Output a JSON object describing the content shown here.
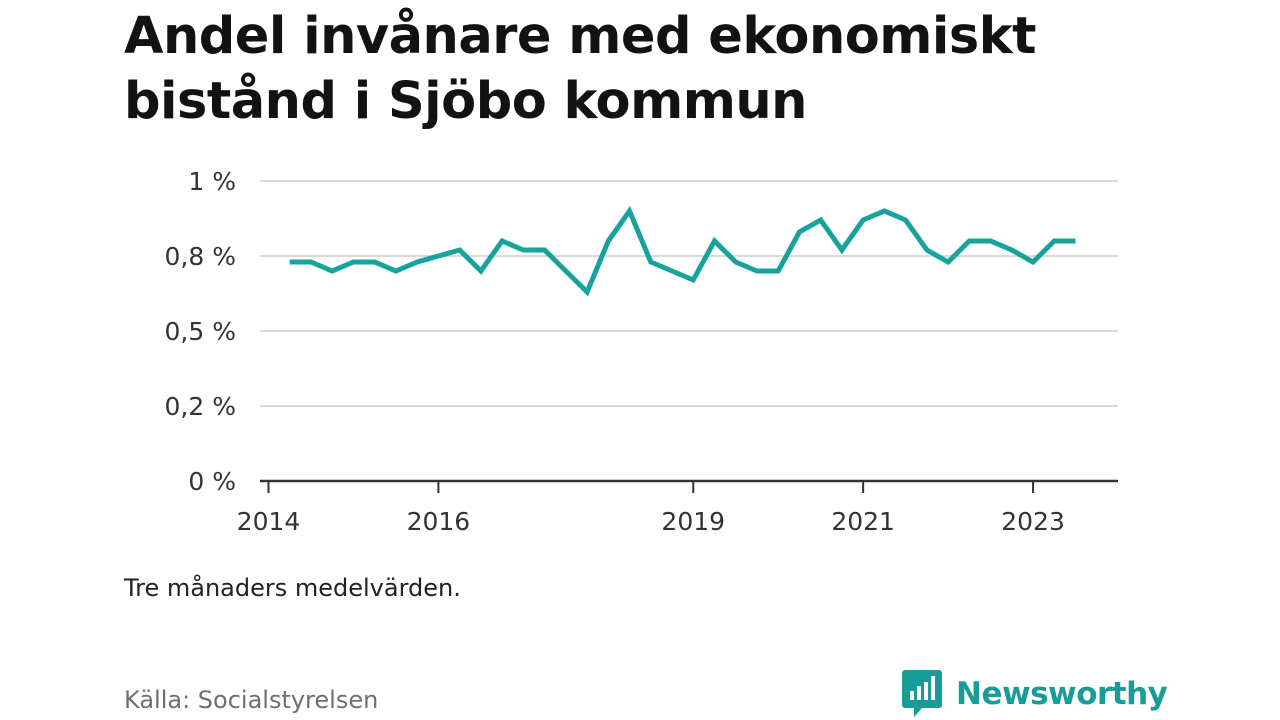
{
  "title": "Andel invånare med ekonomiskt bistånd i Sjöbo kommun",
  "note": "Tre månaders medelvärden.",
  "source": "Källa: Socialstyrelsen",
  "brand": {
    "name": "Newsworthy",
    "icon": "newsworthy-logo-icon",
    "color": "#1a9c96"
  },
  "chart_data": {
    "type": "line",
    "title": "Andel invånare med ekonomiskt bistånd i Sjöbo kommun",
    "xlabel": "",
    "ylabel": "",
    "line_color": "#16a39b",
    "grid": true,
    "legend": "none",
    "ylim": [
      0,
      1.0
    ],
    "xlim": [
      2013.9,
      2024.0
    ],
    "y_ticks": [
      {
        "value": 0,
        "label": "0 %"
      },
      {
        "value": 0.25,
        "label": "0,2 %"
      },
      {
        "value": 0.5,
        "label": "0,5 %"
      },
      {
        "value": 0.75,
        "label": "0,8 %"
      },
      {
        "value": 1.0,
        "label": "1 %"
      }
    ],
    "x_ticks": [
      {
        "value": 2014,
        "label": "2014"
      },
      {
        "value": 2016,
        "label": "2016"
      },
      {
        "value": 2019,
        "label": "2019"
      },
      {
        "value": 2021,
        "label": "2021"
      },
      {
        "value": 2023,
        "label": "2023"
      }
    ],
    "series": [
      {
        "x": [
          2014.25,
          2014.5,
          2014.75,
          2015.0,
          2015.25,
          2015.5,
          2015.75,
          2016.0,
          2016.25,
          2016.5,
          2016.75,
          2017.0,
          2017.25,
          2017.5,
          2017.75,
          2018.0,
          2018.25,
          2018.5,
          2018.75,
          2019.0,
          2019.25,
          2019.5,
          2019.75,
          2020.0,
          2020.25,
          2020.5,
          2020.75,
          2021.0,
          2021.25,
          2021.5,
          2021.75,
          2022.0,
          2022.25,
          2022.5,
          2022.75,
          2023.0,
          2023.25,
          2023.5
        ],
        "values": [
          0.73,
          0.73,
          0.7,
          0.73,
          0.73,
          0.7,
          0.73,
          0.75,
          0.77,
          0.7,
          0.8,
          0.77,
          0.77,
          0.7,
          0.63,
          0.8,
          0.9,
          0.73,
          0.7,
          0.67,
          0.8,
          0.73,
          0.7,
          0.7,
          0.83,
          0.87,
          0.77,
          0.87,
          0.9,
          0.87,
          0.77,
          0.73,
          0.8,
          0.8,
          0.77,
          0.73,
          0.8,
          0.8
        ]
      }
    ]
  }
}
